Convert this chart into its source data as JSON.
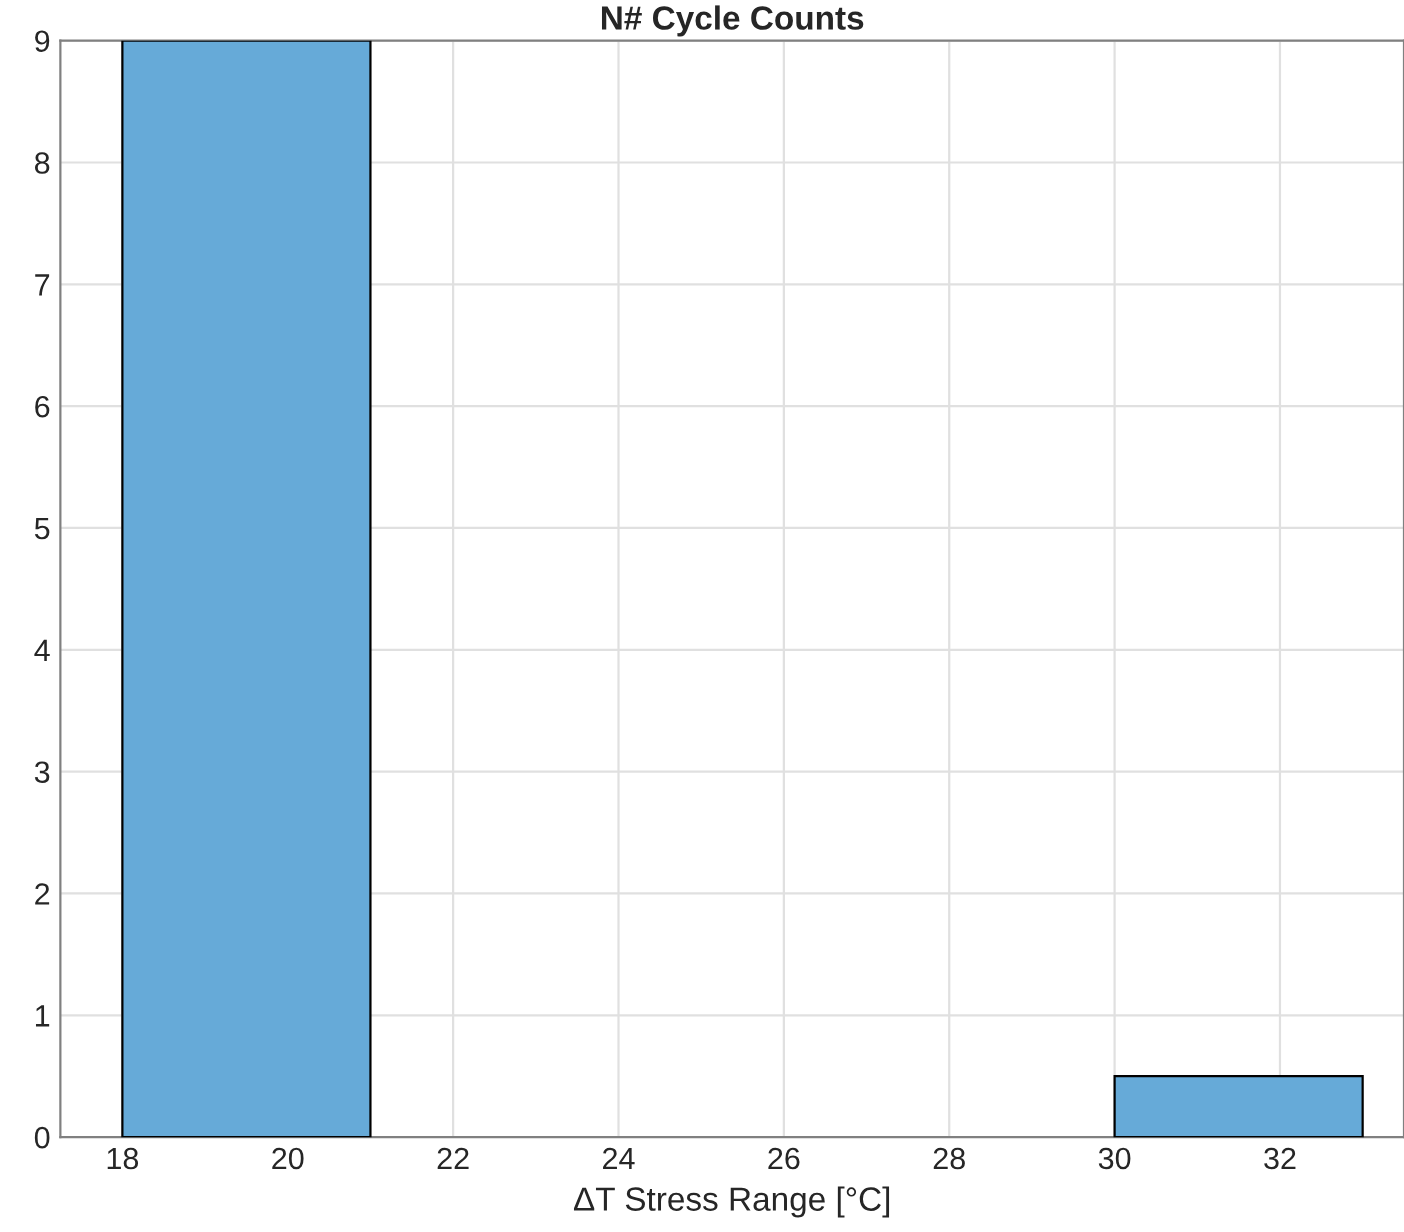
{
  "chart_data": {
    "type": "histogram",
    "title": "N# Cycle Counts",
    "xlabel": "ΔT Stress Range [°C]",
    "bins": [
      18,
      21,
      24,
      27,
      30,
      33
    ],
    "values": [
      9,
      0,
      0,
      0,
      0.5
    ],
    "color": "#66aad8",
    "xlim": [
      17.25,
      33.5
    ],
    "xticks": [
      18,
      20,
      22,
      24,
      26,
      28,
      30,
      32
    ],
    "ylim": [
      0,
      9
    ],
    "yticks": [
      0,
      1,
      2,
      3,
      4,
      5,
      6,
      7,
      8,
      9
    ],
    "grid": true
  }
}
